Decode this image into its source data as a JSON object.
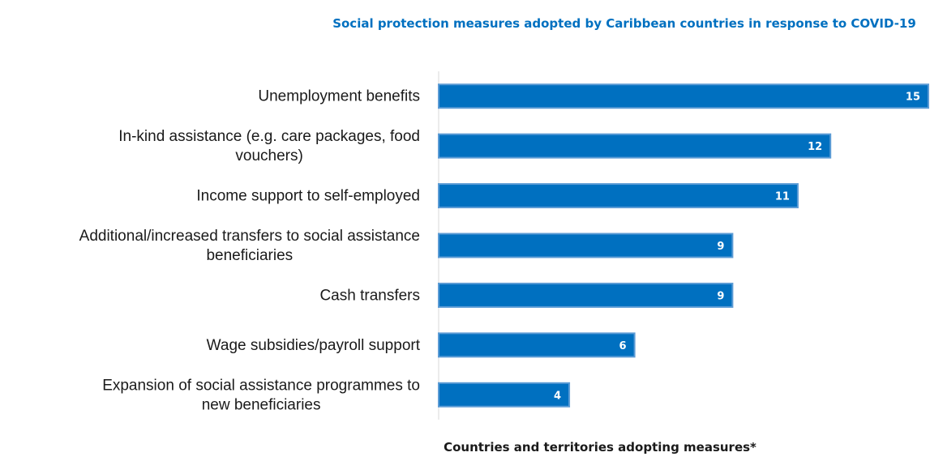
{
  "chart_data": {
    "type": "bar",
    "orientation": "horizontal",
    "title": "Social protection measures adopted by Caribbean countries in response to COVID-19",
    "xlabel": "Countries and territories adopting measures*",
    "ylabel": "",
    "categories": [
      [
        "Unemployment benefits"
      ],
      [
        "In-kind assistance (e.g. care packages, food",
        "vouchers)"
      ],
      [
        "Income support to self-employed"
      ],
      [
        "Additional/increased transfers to social assistance",
        "beneficiaries"
      ],
      [
        "Cash transfers"
      ],
      [
        "Wage subsidies/payroll support"
      ],
      [
        "Expansion of social assistance programmes to",
        "new beneficiaries"
      ]
    ],
    "values": [
      15,
      12,
      11,
      9,
      9,
      6,
      4
    ],
    "xlim": [
      0,
      15
    ],
    "data_labels": true,
    "grid": false,
    "legend": "none"
  },
  "colors": {
    "bar_fill": "#0070c0",
    "bar_stroke": "#5b9bd5",
    "title": "#0070c0",
    "axis": "#d9d9d9"
  }
}
